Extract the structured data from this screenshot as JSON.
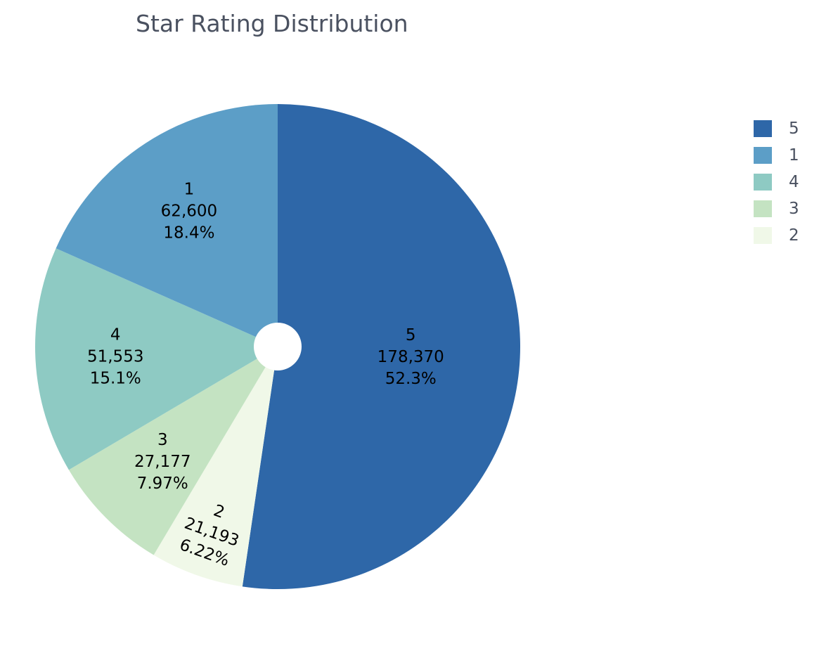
{
  "chart_data": {
    "type": "pie",
    "title": "Star Rating Distribution",
    "hole": "small",
    "legend_position": "right",
    "slices": [
      {
        "label": "5",
        "value": 178370,
        "value_text": "178,370",
        "percent_text": "52.3%",
        "color": "#2e67a8"
      },
      {
        "label": "2",
        "value": 21193,
        "value_text": "21,193",
        "percent_text": "6.22%",
        "color": "#f0f8e8"
      },
      {
        "label": "3",
        "value": 27177,
        "value_text": "27,177",
        "percent_text": "7.97%",
        "color": "#c4e3c2"
      },
      {
        "label": "4",
        "value": 51553,
        "value_text": "51,553",
        "percent_text": "15.1%",
        "color": "#8ecac3"
      },
      {
        "label": "1",
        "value": 62600,
        "value_text": "62,600",
        "percent_text": "18.4%",
        "color": "#5c9ec7"
      }
    ],
    "legend": [
      {
        "label": "5",
        "color": "#2e67a8"
      },
      {
        "label": "1",
        "color": "#5c9ec7"
      },
      {
        "label": "4",
        "color": "#8ecac3"
      },
      {
        "label": "3",
        "color": "#c4e3c2"
      },
      {
        "label": "2",
        "color": "#f0f8e8"
      }
    ]
  }
}
